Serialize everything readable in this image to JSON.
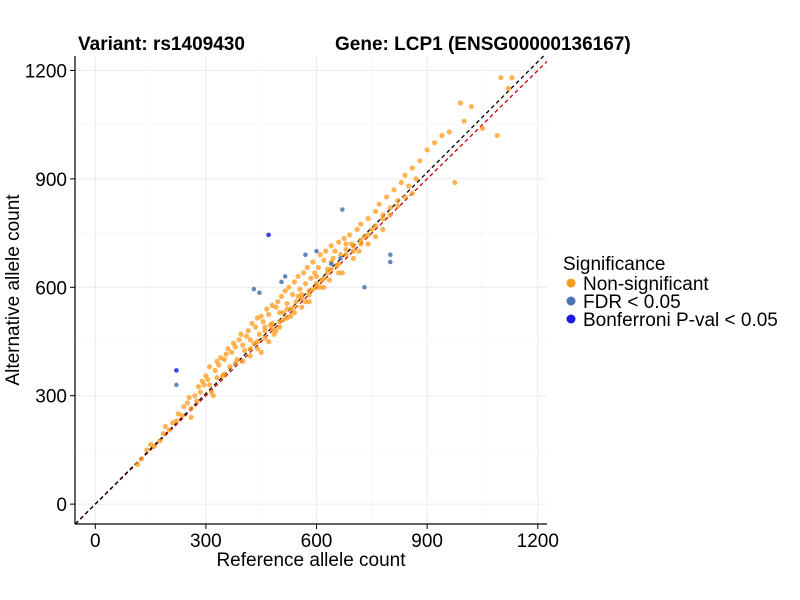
{
  "chart_data": {
    "type": "scatter",
    "title_left": "Variant: rs1409430",
    "title_right": "Gene: LCP1 (ENSG00000136167)",
    "xlabel": "Reference allele count",
    "ylabel": "Alternative allele count",
    "xlim": [
      -55,
      1225
    ],
    "ylim": [
      -55,
      1240
    ],
    "xticks": [
      0,
      300,
      600,
      900,
      1200
    ],
    "yticks": [
      0,
      300,
      600,
      900,
      1200
    ],
    "grid": true,
    "reference_lines": [
      {
        "name": "identity",
        "color": "#000000",
        "dash": true
      },
      {
        "name": "fitted",
        "color": "#cc0000",
        "dash": true
      }
    ],
    "legend": {
      "title": "Significance",
      "position": "right",
      "entries": [
        {
          "label": "Non-significant",
          "color": "#ff9a1a"
        },
        {
          "label": "FDR < 0.05",
          "color": "#4a74b0"
        },
        {
          "label": "Bonferroni P-val < 0.05",
          "color": "#1a1aee"
        }
      ]
    },
    "series": [
      {
        "name": "Non-significant",
        "color": "#ff9a1a",
        "points": [
          [
            115,
            110
          ],
          [
            125,
            125
          ],
          [
            140,
            150
          ],
          [
            150,
            165
          ],
          [
            160,
            160
          ],
          [
            175,
            175
          ],
          [
            185,
            195
          ],
          [
            190,
            215
          ],
          [
            200,
            205
          ],
          [
            210,
            225
          ],
          [
            220,
            230
          ],
          [
            225,
            250
          ],
          [
            235,
            245
          ],
          [
            240,
            270
          ],
          [
            250,
            280
          ],
          [
            255,
            295
          ],
          [
            260,
            265
          ],
          [
            270,
            300
          ],
          [
            275,
            285
          ],
          [
            280,
            325
          ],
          [
            285,
            310
          ],
          [
            290,
            340
          ],
          [
            295,
            330
          ],
          [
            300,
            355
          ],
          [
            305,
            345
          ],
          [
            310,
            380
          ],
          [
            315,
            310
          ],
          [
            320,
            300
          ],
          [
            325,
            370
          ],
          [
            330,
            395
          ],
          [
            335,
            385
          ],
          [
            340,
            405
          ],
          [
            345,
            355
          ],
          [
            350,
            400
          ],
          [
            355,
            415
          ],
          [
            360,
            430
          ],
          [
            365,
            380
          ],
          [
            370,
            420
          ],
          [
            375,
            445
          ],
          [
            380,
            435
          ],
          [
            385,
            400
          ],
          [
            390,
            455
          ],
          [
            395,
            470
          ],
          [
            400,
            440
          ],
          [
            405,
            425
          ],
          [
            410,
            465
          ],
          [
            415,
            480
          ],
          [
            420,
            455
          ],
          [
            425,
            500
          ],
          [
            430,
            445
          ],
          [
            435,
            490
          ],
          [
            440,
            515
          ],
          [
            445,
            470
          ],
          [
            450,
            520
          ],
          [
            455,
            505
          ],
          [
            460,
            480
          ],
          [
            465,
            540
          ],
          [
            470,
            525
          ],
          [
            475,
            495
          ],
          [
            480,
            550
          ],
          [
            485,
            470
          ],
          [
            490,
            545
          ],
          [
            495,
            560
          ],
          [
            500,
            530
          ],
          [
            505,
            575
          ],
          [
            510,
            510
          ],
          [
            515,
            590
          ],
          [
            520,
            555
          ],
          [
            525,
            600
          ],
          [
            530,
            540
          ],
          [
            535,
            580
          ],
          [
            540,
            615
          ],
          [
            545,
            560
          ],
          [
            550,
            630
          ],
          [
            555,
            595
          ],
          [
            560,
            545
          ],
          [
            565,
            640
          ],
          [
            570,
            610
          ],
          [
            575,
            655
          ],
          [
            580,
            580
          ],
          [
            585,
            625
          ],
          [
            590,
            670
          ],
          [
            595,
            640
          ],
          [
            600,
            600
          ],
          [
            605,
            655
          ],
          [
            610,
            690
          ],
          [
            615,
            620
          ],
          [
            620,
            675
          ],
          [
            625,
            700
          ],
          [
            630,
            650
          ],
          [
            635,
            620
          ],
          [
            640,
            715
          ],
          [
            645,
            680
          ],
          [
            650,
            700
          ],
          [
            655,
            660
          ],
          [
            660,
            725
          ],
          [
            665,
            690
          ],
          [
            670,
            640
          ],
          [
            675,
            735
          ],
          [
            680,
            705
          ],
          [
            690,
            745
          ],
          [
            695,
            720
          ],
          [
            700,
            680
          ],
          [
            710,
            760
          ],
          [
            715,
            700
          ],
          [
            720,
            775
          ],
          [
            730,
            740
          ],
          [
            740,
            790
          ],
          [
            750,
            760
          ],
          [
            760,
            810
          ],
          [
            770,
            830
          ],
          [
            780,
            800
          ],
          [
            790,
            850
          ],
          [
            800,
            820
          ],
          [
            810,
            870
          ],
          [
            820,
            840
          ],
          [
            830,
            890
          ],
          [
            840,
            910
          ],
          [
            850,
            880
          ],
          [
            860,
            930
          ],
          [
            870,
            900
          ],
          [
            880,
            950
          ],
          [
            900,
            980
          ],
          [
            920,
            1000
          ],
          [
            940,
            1020
          ],
          [
            960,
            1030
          ],
          [
            975,
            890
          ],
          [
            990,
            1110
          ],
          [
            1000,
            1060
          ],
          [
            1020,
            1100
          ],
          [
            1050,
            1040
          ],
          [
            1090,
            1020
          ],
          [
            1100,
            1180
          ],
          [
            1120,
            1150
          ],
          [
            1130,
            1180
          ],
          [
            260,
            240
          ],
          [
            310,
            330
          ],
          [
            330,
            350
          ],
          [
            350,
            360
          ],
          [
            380,
            390
          ],
          [
            420,
            410
          ],
          [
            440,
            450
          ],
          [
            460,
            460
          ],
          [
            480,
            485
          ],
          [
            500,
            505
          ],
          [
            520,
            515
          ],
          [
            540,
            545
          ],
          [
            560,
            570
          ],
          [
            580,
            590
          ],
          [
            600,
            610
          ],
          [
            620,
            625
          ],
          [
            640,
            650
          ],
          [
            660,
            665
          ],
          [
            680,
            690
          ],
          [
            700,
            715
          ],
          [
            720,
            720
          ],
          [
            740,
            745
          ],
          [
            760,
            770
          ],
          [
            780,
            790
          ],
          [
            800,
            800
          ],
          [
            820,
            825
          ],
          [
            840,
            850
          ],
          [
            860,
            860
          ],
          [
            450,
            420
          ],
          [
            470,
            450
          ],
          [
            490,
            480
          ],
          [
            510,
            530
          ],
          [
            530,
            520
          ],
          [
            550,
            575
          ],
          [
            570,
            560
          ],
          [
            590,
            595
          ],
          [
            610,
            600
          ],
          [
            630,
            640
          ],
          [
            400,
            395
          ],
          [
            420,
            430
          ],
          [
            440,
            430
          ],
          [
            460,
            490
          ],
          [
            480,
            500
          ],
          [
            500,
            490
          ],
          [
            520,
            540
          ],
          [
            540,
            530
          ],
          [
            560,
            580
          ],
          [
            580,
            560
          ],
          [
            600,
            630
          ],
          [
            620,
            600
          ],
          [
            640,
            670
          ],
          [
            660,
            640
          ],
          [
            680,
            720
          ],
          [
            700,
            700
          ],
          [
            720,
            730
          ],
          [
            740,
            720
          ],
          [
            760,
            740
          ],
          [
            780,
            760
          ]
        ]
      },
      {
        "name": "FDR < 0.05",
        "color": "#4a74b0",
        "points": [
          [
            220,
            330
          ],
          [
            430,
            595
          ],
          [
            445,
            585
          ],
          [
            505,
            615
          ],
          [
            515,
            630
          ],
          [
            570,
            690
          ],
          [
            600,
            700
          ],
          [
            640,
            665
          ],
          [
            665,
            680
          ],
          [
            670,
            815
          ],
          [
            730,
            600
          ],
          [
            800,
            690
          ],
          [
            800,
            670
          ]
        ]
      },
      {
        "name": "Bonferroni P-val < 0.05",
        "color": "#1a1aee",
        "points": [
          [
            220,
            370
          ],
          [
            470,
            745
          ]
        ]
      }
    ]
  }
}
